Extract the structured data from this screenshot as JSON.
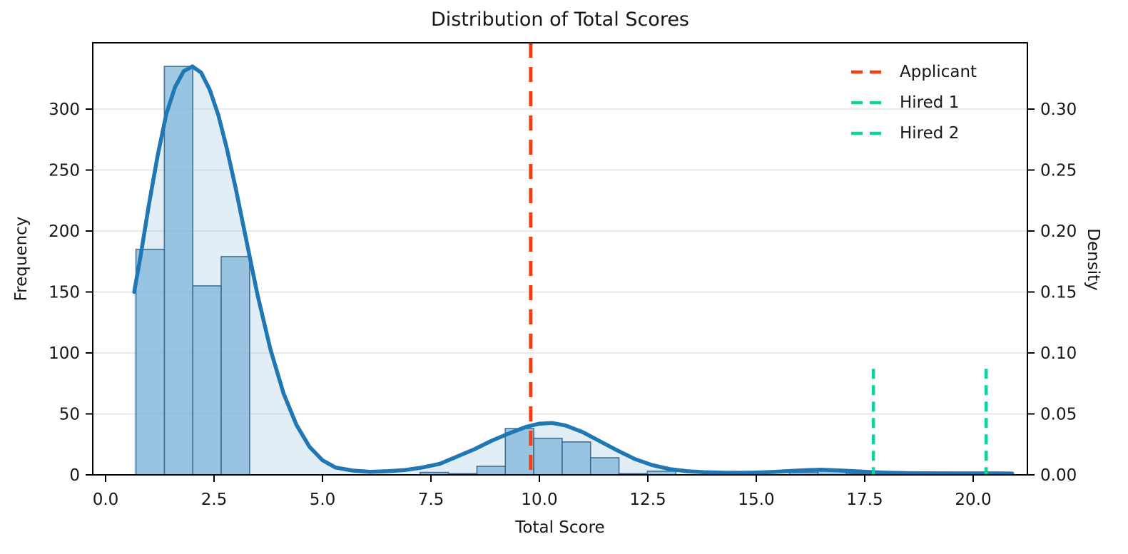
{
  "title": "Distribution of Total Scores",
  "axes": {
    "x_label": "Total Score",
    "y_left_label": "Frequency",
    "y_right_label": "Density",
    "x_tick_values": [
      0,
      2.5,
      5,
      7.5,
      10,
      12.5,
      15,
      17.5,
      20
    ],
    "x_tick_labels": [
      "0.0",
      "2.5",
      "5.0",
      "7.5",
      "10.0",
      "12.5",
      "15.0",
      "17.5",
      "20.0"
    ],
    "y_left_tick_values": [
      0,
      50,
      100,
      150,
      200,
      250,
      300
    ],
    "y_left_tick_labels": [
      "0",
      "50",
      "100",
      "150",
      "200",
      "250",
      "300"
    ],
    "y_right_tick_values": [
      0,
      0.05,
      0.1,
      0.15,
      0.2,
      0.25,
      0.3
    ],
    "y_right_tick_labels": [
      "0.00",
      "0.05",
      "0.10",
      "0.15",
      "0.20",
      "0.25",
      "0.30"
    ]
  },
  "legend": {
    "items": [
      {
        "label": "Applicant",
        "color": "#f63d10"
      },
      {
        "label": "Hired 1",
        "color": "#10d2a0"
      },
      {
        "label": "Hired 2",
        "color": "#10d2a0"
      }
    ]
  },
  "colors": {
    "kde_line": "#1f77b4",
    "kde_fill_base": "#76b0d4",
    "bar_fill_base": "#7db4d8",
    "bar_edge": "#3c6b8d",
    "applicant_line": "#f63d10",
    "hired_line": "#10d2a0",
    "grid": "#e3e3e3",
    "spine": "#000000"
  },
  "chart_data": {
    "type": "histogram+kde",
    "title": "Distribution of Total Scores",
    "xlabel": "Total Score",
    "ylabel_left": "Frequency",
    "ylabel_right": "Density",
    "xlim": [
      -0.3,
      21.25
    ],
    "ylim_frequency": [
      0,
      354
    ],
    "ylim_density": [
      0,
      0.354
    ],
    "grid": "horizontal-only",
    "legend_position": "upper right",
    "histogram": {
      "bin_start": 0.7,
      "bin_width": 0.655,
      "bin_counts": [
        185,
        335,
        155,
        179,
        0,
        0,
        0,
        0,
        0,
        0,
        2,
        1,
        7,
        38,
        30,
        27,
        14,
        1,
        3,
        0,
        0,
        0,
        0,
        2,
        3,
        1,
        0,
        0,
        0,
        1
      ]
    },
    "kde": {
      "note": "frequency-scaled KDE curve; density = frequency / 1000",
      "x": [
        0.66,
        0.8,
        1.0,
        1.2,
        1.4,
        1.6,
        1.8,
        2.0,
        2.2,
        2.4,
        2.6,
        2.8,
        3.0,
        3.2,
        3.5,
        3.8,
        4.1,
        4.4,
        4.7,
        5.0,
        5.3,
        5.7,
        6.1,
        6.5,
        6.9,
        7.3,
        7.7,
        8.1,
        8.5,
        8.9,
        9.3,
        9.7,
        10.0,
        10.3,
        10.6,
        11.0,
        11.4,
        11.8,
        12.2,
        12.6,
        13.0,
        13.4,
        13.8,
        14.2,
        14.6,
        15.0,
        15.4,
        15.8,
        16.2,
        16.5,
        16.9,
        17.3,
        17.7,
        18.1,
        18.5,
        19.0,
        19.5,
        20.0,
        20.5,
        20.9
      ],
      "freq": [
        150,
        178,
        222,
        262,
        296,
        318,
        331,
        335,
        330,
        316,
        295,
        267,
        235,
        200,
        148,
        103,
        67,
        41,
        23,
        12,
        6,
        3.5,
        2.5,
        3,
        4,
        6,
        9,
        15,
        21,
        28,
        34,
        39.5,
        42,
        42.5,
        40.5,
        35,
        27.5,
        20,
        13,
        8,
        4.8,
        3,
        2.2,
        1.8,
        1.7,
        1.9,
        2.4,
        3.2,
        4,
        4.2,
        3.6,
        2.9,
        2.2,
        1.7,
        1.4,
        1.3,
        1.2,
        1.2,
        1.2,
        1.1
      ]
    },
    "vlines": [
      {
        "label": "Applicant",
        "x": 9.8,
        "color": "#f63d10",
        "style": "dashed",
        "extent": "full"
      },
      {
        "label": "Hired 1",
        "x": 17.7,
        "color": "#10d2a0",
        "style": "dashed",
        "extent_freq": 87
      },
      {
        "label": "Hired 2",
        "x": 20.3,
        "color": "#10d2a0",
        "style": "dashed",
        "extent_freq": 87
      }
    ]
  }
}
